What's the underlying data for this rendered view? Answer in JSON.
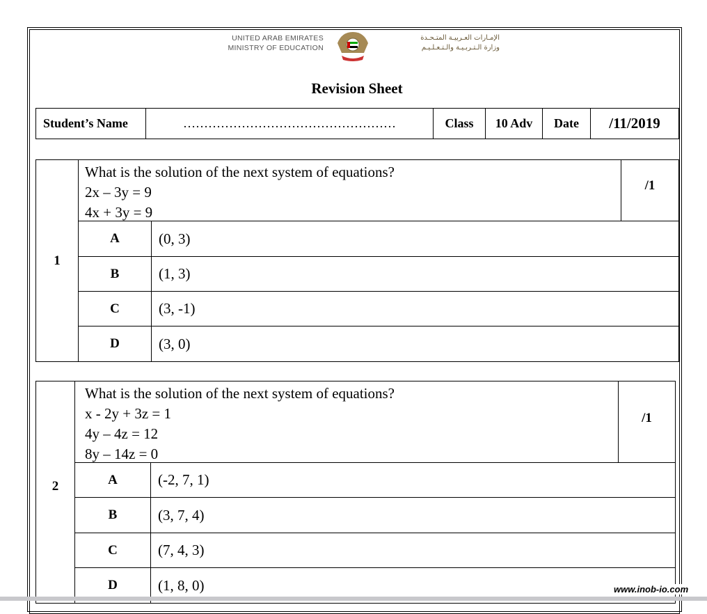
{
  "header": {
    "org_en_1": "UNITED ARAB EMIRATES",
    "org_en_2": "MINISTRY OF EDUCATION",
    "org_ar_1": "الإمـارات العـربيـة المتـحـدة",
    "org_ar_2": "وزارة الـتـربـيـة والـتـعـلـيـم",
    "emblem": "uae-emblem-logo"
  },
  "title": "Revision Sheet",
  "info": {
    "name_label": "Student’s Name",
    "name_value": "……………………………………………",
    "class_label": "Class",
    "class_value": "10 Adv",
    "date_label": "Date",
    "date_value": "/11/2019"
  },
  "questions": [
    {
      "number": "1",
      "lines": [
        "What is the solution of the next system of equations?",
        "2x – 3y = 9",
        "4x + 3y = 9"
      ],
      "score": "/1",
      "options": [
        {
          "letter": "A",
          "value": "(0, 3)"
        },
        {
          "letter": "B",
          "value": "(1, 3)"
        },
        {
          "letter": "C",
          "value": "(3, -1)"
        },
        {
          "letter": "D",
          "value": "(3, 0)"
        }
      ]
    },
    {
      "number": "2",
      "lines": [
        "What is the solution of the next system of equations?",
        "x - 2y + 3z = 1",
        "4y – 4z = 12",
        "8y – 14z = 0"
      ],
      "score": "/1",
      "options": [
        {
          "letter": "A",
          "value": "(-2, 7, 1)"
        },
        {
          "letter": "B",
          "value": "(3, 7, 4)"
        },
        {
          "letter": "C",
          "value": "(7, 4, 3)"
        },
        {
          "letter": "D",
          "value": "(1, 8, 0)"
        }
      ]
    }
  ],
  "watermark": "www.inob-io.com"
}
